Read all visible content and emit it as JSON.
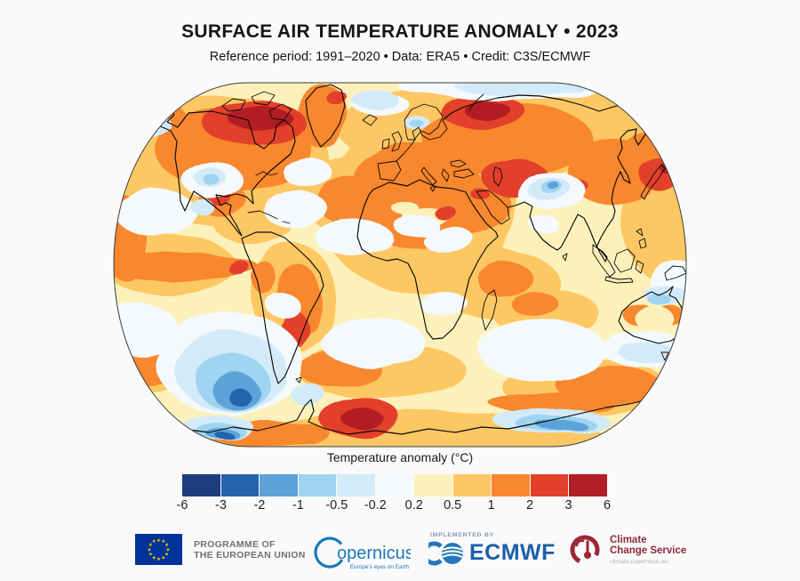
{
  "header": {
    "title": "SURFACE AIR TEMPERATURE ANOMALY • 2023",
    "subtitle": "Reference period: 1991–2020 • Data: ERA5 • Credit: C3S/ECMWF"
  },
  "map": {
    "description": "World map (Robinson projection) of 2023 surface air temperature anomaly relative to 1991–2020"
  },
  "legend": {
    "title": "Temperature anomaly (°C)",
    "tick_labels": [
      "-6",
      "-3",
      "-2",
      "-1",
      "-0.5",
      "-0.2",
      "0.2",
      "0.5",
      "1",
      "2",
      "3",
      "6"
    ],
    "colors": [
      "#1f3d7d",
      "#2563ae",
      "#5ba3d9",
      "#9fd4f0",
      "#d3ebf8",
      "#f4f9fd",
      "#fdf1bb",
      "#fdc763",
      "#f8872f",
      "#e2402a",
      "#b21e24"
    ]
  },
  "footer": {
    "eu": {
      "line1": "PROGRAMME OF",
      "line2": "THE EUROPEAN UNION"
    },
    "copernicus": {
      "name_rest": "opernicus",
      "tagline": "Europe's eyes on Earth"
    },
    "ecmwf": {
      "implemented_by": "IMPLEMENTED BY",
      "name": "ECMWF"
    },
    "c3s": {
      "line1": "Climate",
      "line2": "Change Service",
      "url": "climate.copernicus.eu"
    }
  }
}
